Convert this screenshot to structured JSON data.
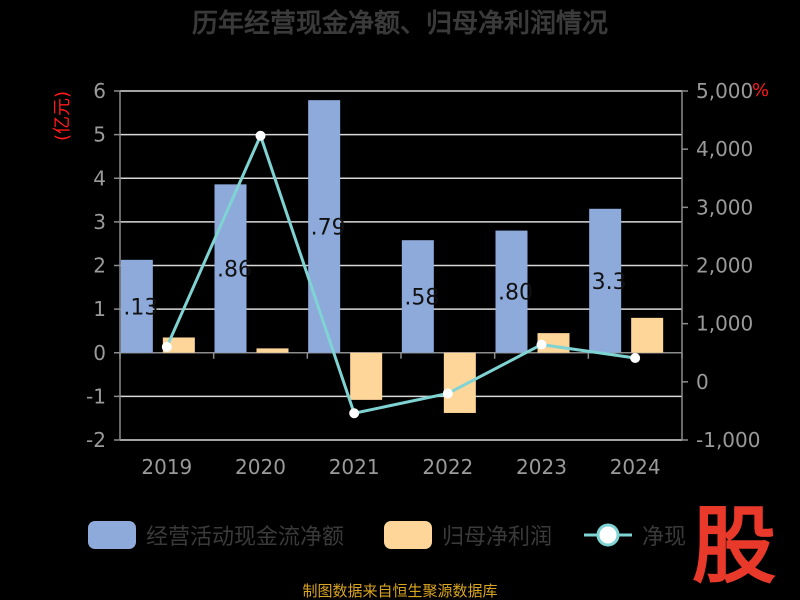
{
  "chart_data": {
    "type": "bar",
    "title": "历年经营现金净额、归母净利润情况",
    "left_unit": "(亿元)",
    "right_unit": "%",
    "categories": [
      "2019",
      "2020",
      "2021",
      "2022",
      "2023",
      "2024"
    ],
    "series": [
      {
        "name": "经营活动现金流净额",
        "type": "bar",
        "axis": "left",
        "color": "#8eaadb",
        "values": [
          2.13,
          3.86,
          5.79,
          2.58,
          2.8,
          3.3
        ]
      },
      {
        "name": "归母净利润",
        "type": "bar",
        "axis": "left",
        "color": "#ffd699",
        "values": [
          0.35,
          0.1,
          -1.08,
          -1.38,
          0.45,
          0.8
        ]
      },
      {
        "name": "净现比",
        "type": "line",
        "axis": "right",
        "color": "#7fd3d3",
        "values": [
          600,
          4230,
          -540,
          -200,
          640,
          410
        ]
      }
    ],
    "bar_labels": [
      ".13",
      ".86",
      ".79",
      ".58",
      ".80",
      "3.3"
    ],
    "ylim_left": [
      -2,
      6
    ],
    "yticks_left": [
      "6",
      "5",
      "4",
      "3",
      "2",
      "1",
      "0",
      "-1",
      "-2"
    ],
    "ylim_right": [
      -1000,
      5000
    ],
    "yticks_right": [
      "5,000",
      "4,000",
      "3,000",
      "2,000",
      "1,000",
      "0",
      "-1,000"
    ],
    "legend_position": "bottom",
    "legend_labels": [
      "经营活动现金流净额",
      "归母净利润",
      "净现"
    ],
    "grid": true
  },
  "watermark": "股",
  "footer": "制图数据来自恒生聚源数据库"
}
